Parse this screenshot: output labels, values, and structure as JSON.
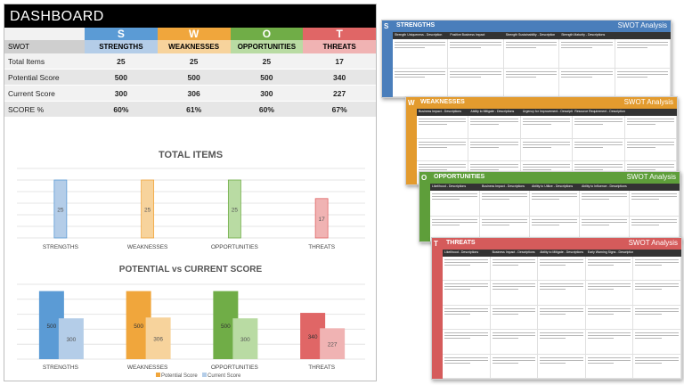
{
  "dashboard": {
    "title": "DASHBOARD",
    "letters": [
      "S",
      "W",
      "O",
      "T"
    ],
    "header_label": "SWOT",
    "columns": [
      "STRENGTHS",
      "WEAKNESSES",
      "OPPORTUNITIES",
      "THREATS"
    ],
    "colors": {
      "strengths": "#5b9bd5",
      "weaknesses": "#f0a63c",
      "opportunities": "#70ad47",
      "threats": "#e06666",
      "strengths_light": "#b4cde8",
      "weaknesses_light": "#f7d39c",
      "opportunities_light": "#b9dba3",
      "threats_light": "#f0b3b3"
    },
    "rows": [
      {
        "label": "Total Items",
        "values": [
          "25",
          "25",
          "25",
          "17"
        ]
      },
      {
        "label": "Potential Score",
        "values": [
          "500",
          "500",
          "500",
          "340"
        ]
      },
      {
        "label": "Current Score",
        "values": [
          "300",
          "306",
          "300",
          "227"
        ]
      },
      {
        "label": "SCORE %",
        "values": [
          "60%",
          "61%",
          "60%",
          "67%"
        ]
      }
    ]
  },
  "chart_data": [
    {
      "type": "bar",
      "title": "TOTAL ITEMS",
      "categories": [
        "STRENGTHS",
        "WEAKNESSES",
        "OPPORTUNITIES",
        "THREATS"
      ],
      "values": [
        25,
        25,
        25,
        17
      ],
      "ylim": [
        0,
        30
      ],
      "grid": true
    },
    {
      "type": "bar",
      "title": "POTENTIAL vs CURRENT SCORE",
      "categories": [
        "STRENGTHS",
        "WEAKNESSES",
        "OPPORTUNITIES",
        "THREATS"
      ],
      "series": [
        {
          "name": "Potential Score",
          "values": [
            500,
            500,
            500,
            340
          ]
        },
        {
          "name": "Current Score",
          "values": [
            300,
            306,
            300,
            227
          ]
        }
      ],
      "ylim": [
        0,
        550
      ],
      "legend": "bottom"
    }
  ],
  "cards": [
    {
      "letter": "S",
      "title": "STRENGTHS",
      "tag": "SWOT Analysis",
      "color": "#4a7ebb",
      "cols": [
        "Strength Uniqueness - Description",
        "Positive Business Impact",
        "Strength Sustainability - Description",
        "Strength Maturity - Descriptions",
        ""
      ]
    },
    {
      "letter": "W",
      "title": "WEAKNESSES",
      "tag": "SWOT Analysis",
      "color": "#e39b2e",
      "cols": [
        "Business Impact - Descriptions",
        "Ability to Mitigate - Descriptions",
        "Urgency for Improvement - Descriptions",
        "Resource Requirement - Descriptions",
        ""
      ]
    },
    {
      "letter": "O",
      "title": "OPPORTUNITIES",
      "tag": "SWOT Analysis",
      "color": "#5e9e3a",
      "cols": [
        "Likelihood - Descriptions",
        "Business Impact - Descriptions",
        "Ability to Utilize - Descriptions",
        "Ability to Influence - Descriptions",
        ""
      ]
    },
    {
      "letter": "T",
      "title": "THREATS",
      "tag": "SWOT Analysis",
      "color": "#d55b5b",
      "cols": [
        "Likelihood - Descriptions",
        "Business Impact - Descriptions",
        "Ability to Mitigate - Descriptions",
        "Early Warning Signs - Descriptions",
        ""
      ]
    }
  ]
}
